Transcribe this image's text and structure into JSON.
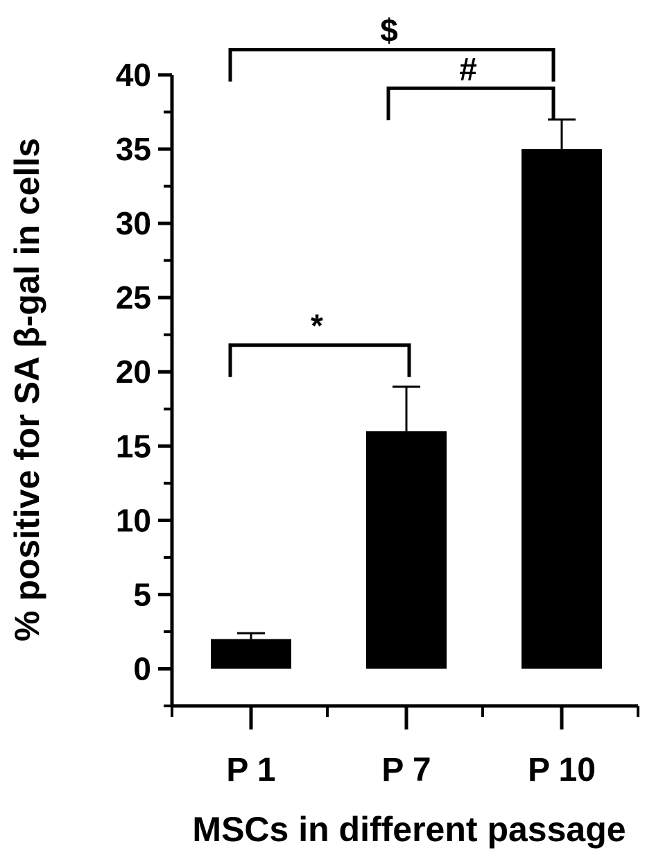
{
  "chart_data": {
    "type": "bar",
    "title": "",
    "xlabel": "MSCs in different passage",
    "ylabel": "% positive for SA β-gal in cells",
    "ylim": [
      -2.5,
      40
    ],
    "yticks": [
      0,
      5,
      10,
      15,
      20,
      25,
      30,
      35,
      40
    ],
    "ytick_labels": [
      "0",
      "5",
      "10",
      "15",
      "20",
      "25",
      "30",
      "35",
      "40"
    ],
    "grid": false,
    "legend": "none",
    "bar_color": "#000000",
    "categories": [
      "P 1",
      "P 7",
      "P 10"
    ],
    "values": [
      2,
      16,
      35
    ],
    "errors": [
      0.4,
      3,
      2
    ],
    "significance": [
      {
        "from": 0,
        "to": 1,
        "label": "*",
        "y": 21.8
      },
      {
        "from": 1,
        "to": 2,
        "label": "#",
        "y": 39.1
      },
      {
        "from": 0,
        "to": 2,
        "label": "$",
        "y": 41.7
      }
    ]
  }
}
